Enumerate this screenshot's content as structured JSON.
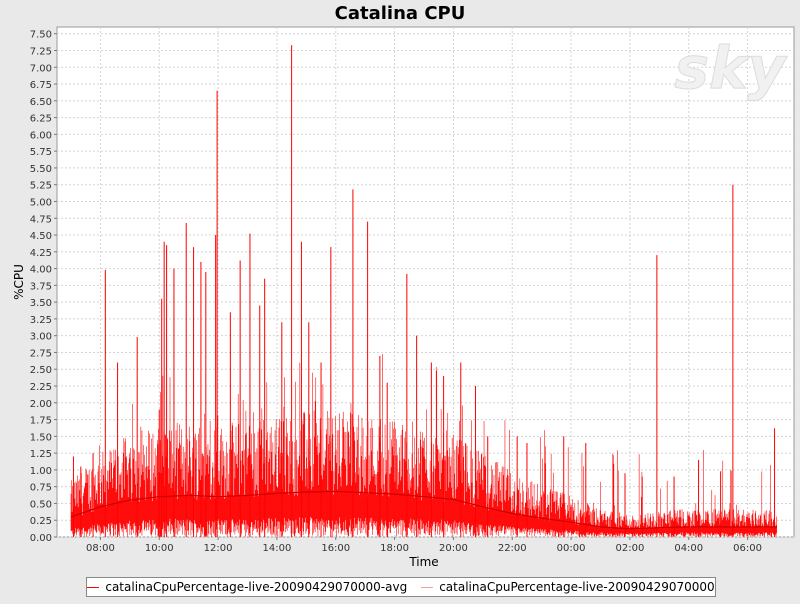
{
  "chart_data": {
    "type": "line",
    "title": "Catalina CPU",
    "xlabel": "Time",
    "ylabel": "%CPU",
    "x_tick_labels": [
      "08:00",
      "10:00",
      "12:00",
      "14:00",
      "16:00",
      "18:00",
      "20:00",
      "22:00",
      "00:00",
      "02:00",
      "04:00",
      "06:00"
    ],
    "x_range": [
      "07:00",
      "07:00"
    ],
    "y_tick_labels": [
      "0.00",
      "0.25",
      "0.50",
      "0.75",
      "1.00",
      "1.25",
      "1.50",
      "1.75",
      "2.00",
      "2.25",
      "2.50",
      "2.75",
      "3.00",
      "3.25",
      "3.50",
      "3.75",
      "4.00",
      "4.25",
      "4.50",
      "4.75",
      "5.00",
      "5.25",
      "5.50",
      "5.75",
      "6.00",
      "6.25",
      "6.50",
      "6.75",
      "7.00",
      "7.25",
      "7.50"
    ],
    "ylim": [
      0,
      7.6
    ],
    "grid": true,
    "legend_position": "bottom",
    "series": [
      {
        "name": "catalinaCpuPercentage-live-20090429070000-avg",
        "color": "#cc0000",
        "points": [
          [
            "07:00",
            0.3
          ],
          [
            "08:00",
            0.45
          ],
          [
            "09:00",
            0.55
          ],
          [
            "10:00",
            0.6
          ],
          [
            "11:00",
            0.62
          ],
          [
            "12:00",
            0.6
          ],
          [
            "13:00",
            0.62
          ],
          [
            "14:00",
            0.65
          ],
          [
            "15:00",
            0.67
          ],
          [
            "16:00",
            0.68
          ],
          [
            "17:00",
            0.66
          ],
          [
            "18:00",
            0.64
          ],
          [
            "19:00",
            0.6
          ],
          [
            "20:00",
            0.56
          ],
          [
            "21:00",
            0.45
          ],
          [
            "22:00",
            0.35
          ],
          [
            "23:00",
            0.28
          ],
          [
            "00:00",
            0.22
          ],
          [
            "01:00",
            0.15
          ],
          [
            "02:00",
            0.12
          ],
          [
            "03:00",
            0.14
          ],
          [
            "04:00",
            0.15
          ],
          [
            "05:00",
            0.15
          ],
          [
            "06:00",
            0.15
          ],
          [
            "07:00",
            0.15
          ]
        ]
      },
      {
        "name": "catalinaCpuPercentage-live-20090429070000",
        "color": "#ff0000",
        "spikes": [
          [
            "07:05",
            1.2
          ],
          [
            "07:20",
            1.05
          ],
          [
            "07:45",
            1.25
          ],
          [
            "08:10",
            3.98
          ],
          [
            "08:35",
            2.6
          ],
          [
            "09:15",
            2.98
          ],
          [
            "10:00",
            1.9
          ],
          [
            "10:05",
            3.55
          ],
          [
            "10:10",
            4.4
          ],
          [
            "10:15",
            4.35
          ],
          [
            "10:30",
            4.0
          ],
          [
            "10:55",
            4.68
          ],
          [
            "11:10",
            4.32
          ],
          [
            "11:25",
            4.1
          ],
          [
            "11:35",
            3.95
          ],
          [
            "11:55",
            4.5
          ],
          [
            "11:58",
            6.65
          ],
          [
            "12:25",
            3.35
          ],
          [
            "12:45",
            4.12
          ],
          [
            "13:05",
            4.52
          ],
          [
            "13:25",
            3.45
          ],
          [
            "13:35",
            3.85
          ],
          [
            "14:10",
            3.2
          ],
          [
            "14:30",
            7.33
          ],
          [
            "14:50",
            4.4
          ],
          [
            "15:05",
            3.2
          ],
          [
            "15:30",
            2.6
          ],
          [
            "15:50",
            4.32
          ],
          [
            "16:35",
            5.18
          ],
          [
            "17:05",
            4.7
          ],
          [
            "17:30",
            2.7
          ],
          [
            "17:45",
            2.3
          ],
          [
            "18:25",
            3.92
          ],
          [
            "18:45",
            3.0
          ],
          [
            "19:15",
            2.6
          ],
          [
            "19:40",
            2.4
          ],
          [
            "20:15",
            2.6
          ],
          [
            "20:45",
            2.25
          ],
          [
            "21:10",
            1.5
          ],
          [
            "22:10",
            1.5
          ],
          [
            "22:30",
            1.4
          ],
          [
            "23:45",
            1.5
          ],
          [
            "00:30",
            1.4
          ],
          [
            "01:50",
            0.95
          ],
          [
            "02:25",
            0.9
          ],
          [
            "02:55",
            4.2
          ],
          [
            "03:30",
            0.9
          ],
          [
            "04:20",
            1.15
          ],
          [
            "05:05",
            0.98
          ],
          [
            "05:30",
            5.25
          ],
          [
            "06:55",
            1.62
          ]
        ]
      }
    ],
    "watermark": "sky"
  },
  "colors": {
    "background": "#e9e9e9",
    "plot_background": "#ffffff",
    "grid": "#d4d4d4",
    "series": "#ff0000"
  }
}
